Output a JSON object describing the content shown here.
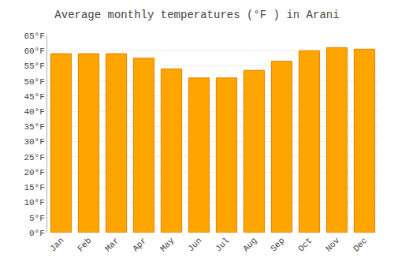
{
  "chart_data": {
    "type": "bar",
    "title": "Average monthly temperatures (°F ) in Arani",
    "categories": [
      "Jan",
      "Feb",
      "Mar",
      "Apr",
      "May",
      "Jun",
      "Jul",
      "Aug",
      "Sep",
      "Oct",
      "Nov",
      "Dec"
    ],
    "values": [
      59.0,
      59.0,
      59.0,
      57.5,
      54.0,
      51.0,
      51.0,
      53.5,
      56.5,
      60.0,
      61.0,
      60.5
    ],
    "color": "#FFA500",
    "ylim": [
      0,
      65
    ],
    "yticks": [
      {
        "value": 0,
        "label": "0°F"
      },
      {
        "value": 5,
        "label": "5°F"
      },
      {
        "value": 10,
        "label": "10°F"
      },
      {
        "value": 15,
        "label": "15°F"
      },
      {
        "value": 20,
        "label": "20°F"
      },
      {
        "value": 25,
        "label": "25°F"
      },
      {
        "value": 30,
        "label": "30°F"
      },
      {
        "value": 35,
        "label": "35°F"
      },
      {
        "value": 40,
        "label": "40°F"
      },
      {
        "value": 45,
        "label": "45°F"
      },
      {
        "value": 50,
        "label": "50°F"
      },
      {
        "value": 55,
        "label": "55°F"
      },
      {
        "value": 60,
        "label": "60°F"
      },
      {
        "value": 65,
        "label": "65°F"
      }
    ],
    "grid": true
  }
}
